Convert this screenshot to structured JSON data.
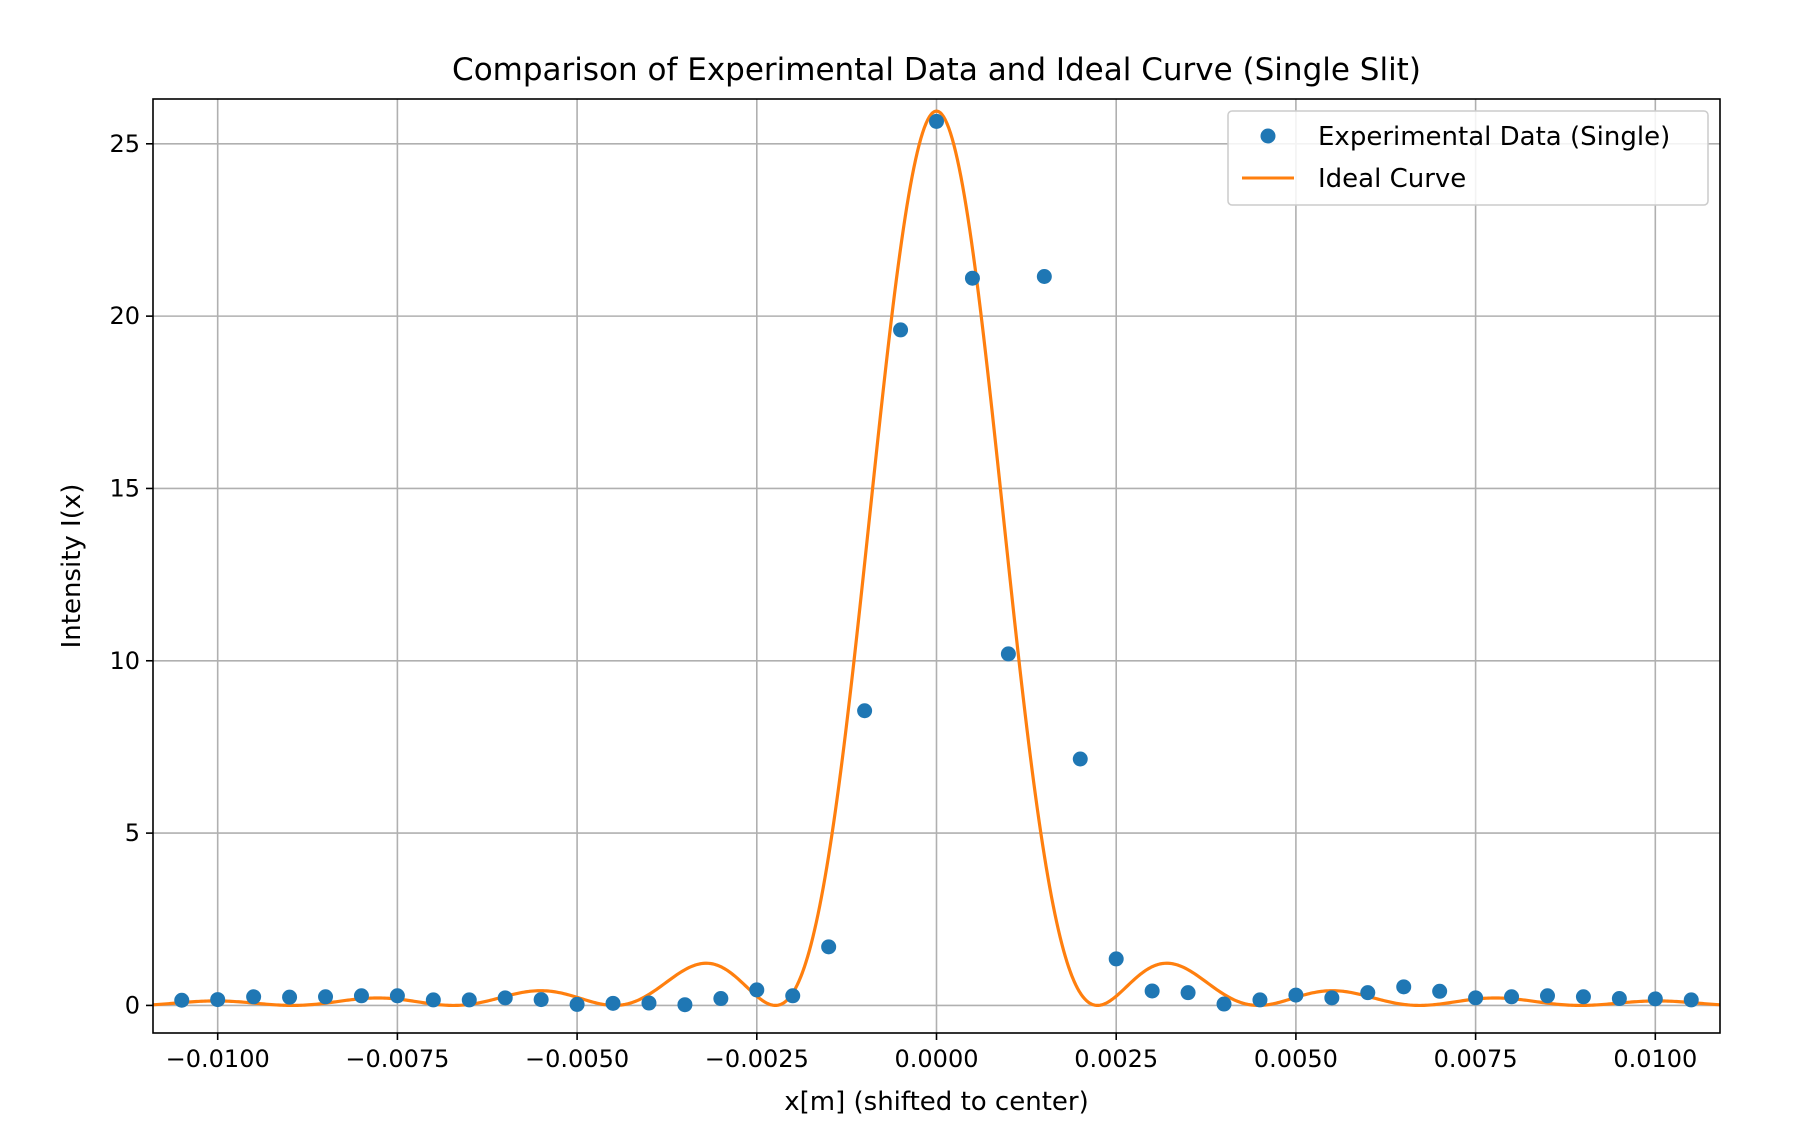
{
  "chart_data": {
    "type": "scatter",
    "title": "Comparison of Experimental Data and Ideal Curve (Single Slit)",
    "xlabel": "x[m] (shifted to center)",
    "ylabel": "Intensity I(x)",
    "xlim": [
      -0.0109,
      0.0109
    ],
    "ylim": [
      -0.8,
      26.3
    ],
    "grid": true,
    "legend_position": "top-right",
    "x_ticks": [
      -0.01,
      -0.0075,
      -0.005,
      -0.0025,
      0.0,
      0.0025,
      0.005,
      0.0075,
      0.01
    ],
    "x_tick_labels": [
      "−0.0100",
      "−0.0075",
      "−0.0050",
      "−0.0025",
      "0.0000",
      "0.0025",
      "0.0050",
      "0.0075",
      "0.0100"
    ],
    "y_ticks": [
      0,
      5,
      10,
      15,
      20,
      25
    ],
    "y_tick_labels": [
      "0",
      "5",
      "10",
      "15",
      "20",
      "25"
    ],
    "series": [
      {
        "name": "Experimental Data (Single)",
        "type": "scatter",
        "color": "#1f77b4",
        "x": [
          -0.0105,
          -0.01,
          -0.0095,
          -0.009,
          -0.0085,
          -0.008,
          -0.0075,
          -0.007,
          -0.0065,
          -0.006,
          -0.0055,
          -0.005,
          -0.0045,
          -0.004,
          -0.0035,
          -0.003,
          -0.0025,
          -0.002,
          -0.0015,
          -0.001,
          -0.0005,
          0.0,
          0.0005,
          0.001,
          0.0015,
          0.002,
          0.0025,
          0.003,
          0.0035,
          0.004,
          0.0045,
          0.005,
          0.0055,
          0.006,
          0.0065,
          0.007,
          0.0075,
          0.008,
          0.0085,
          0.009,
          0.0095,
          0.01,
          0.0105
        ],
        "y": [
          0.15,
          0.17,
          0.25,
          0.24,
          0.25,
          0.28,
          0.28,
          0.16,
          0.16,
          0.22,
          0.17,
          0.03,
          0.06,
          0.07,
          0.02,
          0.2,
          0.45,
          0.28,
          1.7,
          8.55,
          19.6,
          25.65,
          21.1,
          10.2,
          21.15,
          7.15,
          1.35,
          0.42,
          0.37,
          0.04,
          0.16,
          0.3,
          0.22,
          0.37,
          0.54,
          0.41,
          0.22,
          0.25,
          0.28,
          0.25,
          0.2,
          0.19,
          0.16
        ]
      },
      {
        "name": "Ideal Curve",
        "type": "line",
        "color": "#ff7f0e",
        "model": "sinc-squared",
        "peak": 25.95,
        "first_zero_x": 0.00224
      }
    ]
  }
}
